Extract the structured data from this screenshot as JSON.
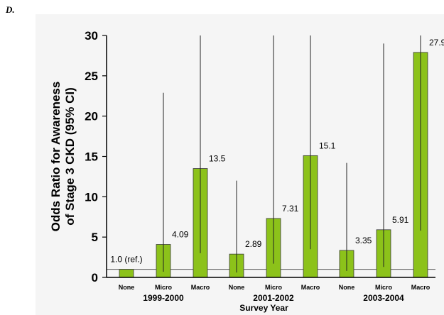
{
  "panel_label": "D.",
  "chart_data": {
    "type": "bar",
    "ylabel_lines": [
      "Odds Ratio for Awareness",
      "of Stage 3 CKD (95% CI)"
    ],
    "xlabel": "Survey Year",
    "ylim": [
      0,
      30
    ],
    "yticks": [
      "0",
      "5",
      "10",
      "15",
      "20",
      "25",
      "30"
    ],
    "reference_line": 1.0,
    "bar_color": "#8cc21a",
    "groups": [
      {
        "label": "1999-2000",
        "bars": [
          {
            "category": "None",
            "value": 1.0,
            "ci": [
              1.0,
              1.0
            ],
            "label": "1.0 (ref.)"
          },
          {
            "category": "Micro",
            "value": 4.09,
            "ci": [
              0.7,
              22.9
            ],
            "label": "4.09"
          },
          {
            "category": "Macro",
            "value": 13.5,
            "ci": [
              3.0,
              30.0
            ],
            "label": "13.5"
          }
        ]
      },
      {
        "label": "2001-2002",
        "bars": [
          {
            "category": "None",
            "value": 2.89,
            "ci": [
              0.6,
              12.0
            ],
            "label": "2.89"
          },
          {
            "category": "Micro",
            "value": 7.31,
            "ci": [
              1.7,
              30.0
            ],
            "label": "7.31"
          },
          {
            "category": "Macro",
            "value": 15.1,
            "ci": [
              3.5,
              30.0
            ],
            "label": "15.1"
          }
        ]
      },
      {
        "label": "2003-2004",
        "bars": [
          {
            "category": "None",
            "value": 3.35,
            "ci": [
              0.8,
              14.2
            ],
            "label": "3.35"
          },
          {
            "category": "Micro",
            "value": 5.91,
            "ci": [
              1.3,
              29.0
            ],
            "label": "5.91"
          },
          {
            "category": "Macro",
            "value": 27.9,
            "ci": [
              5.8,
              30.0
            ],
            "label": "27.9"
          }
        ]
      }
    ]
  }
}
